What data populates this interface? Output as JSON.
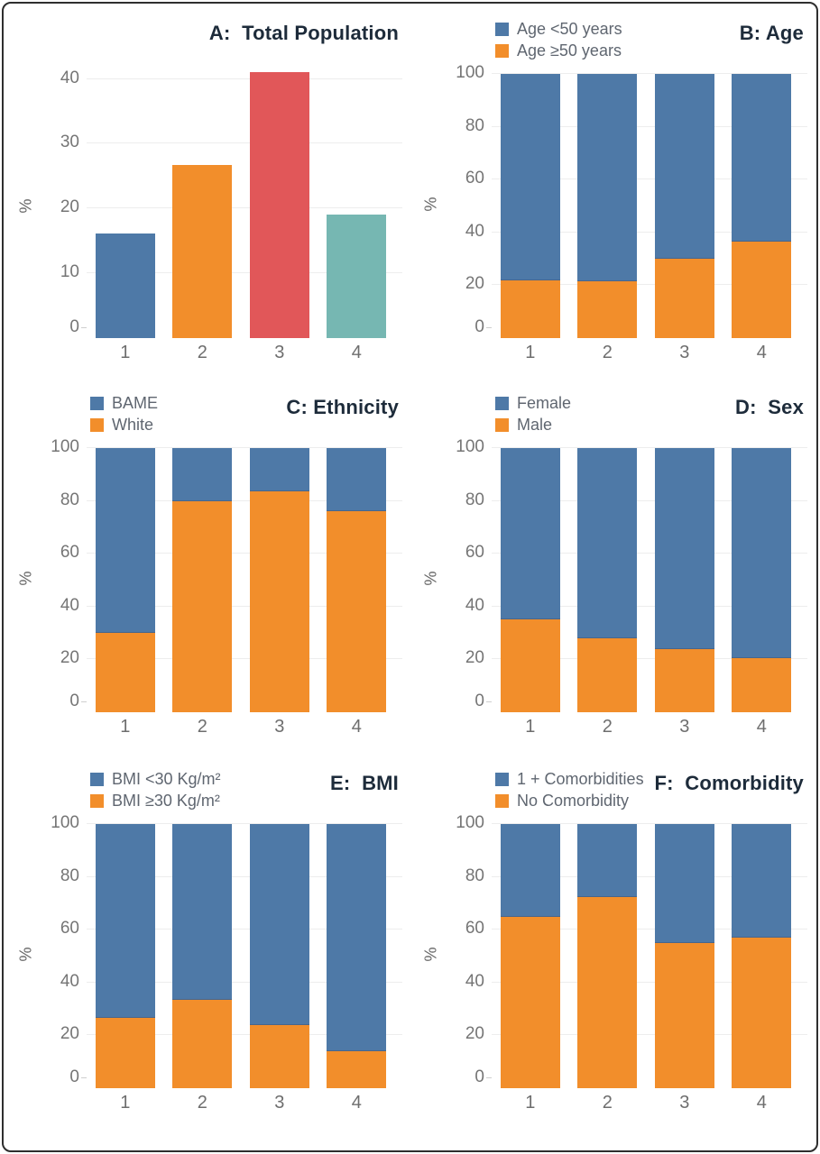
{
  "figure": {
    "description": "Six-panel demographic bar chart figure comparing 4 groups",
    "background": "#ffffff",
    "border_color": "#2e2e2e"
  },
  "palette": {
    "blue": "#4e79a7",
    "orange": "#f28e2b",
    "red": "#e15759",
    "teal": "#76b7b2"
  },
  "chart_data": [
    {
      "panel_label": "A",
      "title": "A:  Total Population",
      "type": "bar",
      "ylabel": "%",
      "categories": [
        "1",
        "2",
        "3",
        "4"
      ],
      "yticks": [
        0,
        10,
        20,
        30,
        40
      ],
      "ylim": [
        0,
        42
      ],
      "grid": true,
      "values": [
        16.2,
        26.7,
        41,
        19
      ],
      "colors": [
        "#4e79a7",
        "#f28e2b",
        "#e15759",
        "#76b7b2"
      ]
    },
    {
      "panel_label": "B",
      "title": "B: Age",
      "type": "stacked",
      "ylabel": "%",
      "categories": [
        "1",
        "2",
        "3",
        "4"
      ],
      "yticks": [
        0,
        20,
        40,
        60,
        80,
        100
      ],
      "ylim": [
        0,
        100
      ],
      "grid": true,
      "legend_position": "top-left",
      "series": [
        {
          "name": "Age <50 years",
          "color": "#4e79a7",
          "values": [
            78,
            78.5,
            70,
            63.5
          ]
        },
        {
          "name": "Age ≥50 years",
          "color": "#f28e2b",
          "values": [
            22,
            21.5,
            30,
            36.5
          ]
        }
      ]
    },
    {
      "panel_label": "C",
      "title": "C: Ethnicity",
      "type": "stacked",
      "ylabel": "%",
      "categories": [
        "1",
        "2",
        "3",
        "4"
      ],
      "yticks": [
        0,
        20,
        40,
        60,
        80,
        100
      ],
      "ylim": [
        0,
        100
      ],
      "grid": true,
      "legend_position": "top-left",
      "series": [
        {
          "name": "BAME",
          "color": "#4e79a7",
          "values": [
            70,
            20,
            16.5,
            24
          ]
        },
        {
          "name": "White",
          "color": "#f28e2b",
          "values": [
            30,
            80,
            83.5,
            76
          ]
        }
      ]
    },
    {
      "panel_label": "D",
      "title": "D:  Sex",
      "type": "stacked",
      "ylabel": "%",
      "categories": [
        "1",
        "2",
        "3",
        "4"
      ],
      "yticks": [
        0,
        20,
        40,
        60,
        80,
        100
      ],
      "ylim": [
        0,
        100
      ],
      "grid": true,
      "legend_position": "top-left",
      "series": [
        {
          "name": "Female",
          "color": "#4e79a7",
          "values": [
            65,
            72,
            76,
            79.5
          ]
        },
        {
          "name": "Male",
          "color": "#f28e2b",
          "values": [
            35,
            28,
            24,
            20.5
          ]
        }
      ]
    },
    {
      "panel_label": "E",
      "title": "E:  BMI",
      "type": "stacked",
      "ylabel": "%",
      "categories": [
        "1",
        "2",
        "3",
        "4"
      ],
      "yticks": [
        0,
        20,
        40,
        60,
        80,
        100
      ],
      "ylim": [
        0,
        100
      ],
      "grid": true,
      "legend_position": "top-left",
      "series": [
        {
          "name": "BMI <30 Kg/m²",
          "color": "#4e79a7",
          "values": [
            73.5,
            66.5,
            76,
            86
          ]
        },
        {
          "name": "BMI ≥30 Kg/m²",
          "color": "#f28e2b",
          "values": [
            26.5,
            33.5,
            24,
            14
          ]
        }
      ]
    },
    {
      "panel_label": "F",
      "title": "F:  Comorbidity",
      "type": "stacked",
      "ylabel": "%",
      "categories": [
        "1",
        "2",
        "3",
        "4"
      ],
      "yticks": [
        0,
        20,
        40,
        60,
        80,
        100
      ],
      "ylim": [
        0,
        100
      ],
      "grid": true,
      "legend_position": "top-left",
      "series": [
        {
          "name": "1 + Comorbidities",
          "color": "#4e79a7",
          "values": [
            35,
            27.5,
            45,
            43
          ]
        },
        {
          "name": "No Comorbidity",
          "color": "#f28e2b",
          "values": [
            65,
            72.5,
            55,
            57
          ]
        }
      ]
    }
  ]
}
